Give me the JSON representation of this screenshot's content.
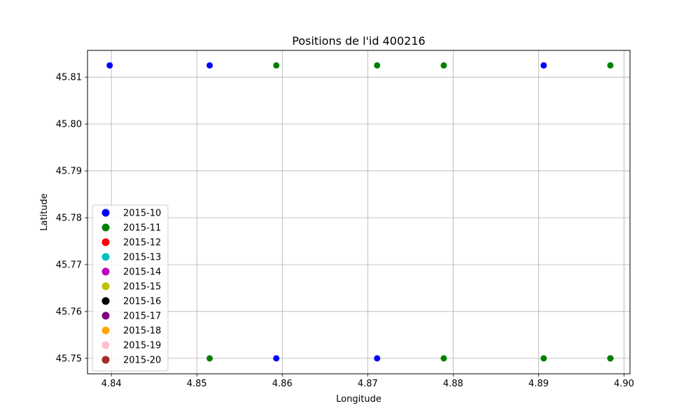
{
  "chart_data": {
    "type": "scatter",
    "title": "Positions de l'id 400216",
    "xlabel": "Longitude",
    "ylabel": "Latitude",
    "xlim": [
      4.8372,
      4.9007
    ],
    "ylim": [
      45.7467,
      45.8157
    ],
    "xticks": [
      4.84,
      4.85,
      4.86,
      4.87,
      4.88,
      4.89,
      4.9
    ],
    "xtick_labels": [
      "4.84",
      "4.85",
      "4.86",
      "4.87",
      "4.88",
      "4.89",
      "4.90"
    ],
    "yticks": [
      45.75,
      45.76,
      45.77,
      45.78,
      45.79,
      45.8,
      45.81
    ],
    "ytick_labels": [
      "45.75",
      "45.76",
      "45.77",
      "45.78",
      "45.79",
      "45.80",
      "45.81"
    ],
    "grid": true,
    "legend_position": "lower-left",
    "series": [
      {
        "name": "2015-10",
        "color": "#0000ff",
        "points": [
          [
            4.8398,
            45.8125
          ],
          [
            4.8515,
            45.8125
          ],
          [
            4.8906,
            45.8125
          ],
          [
            4.8593,
            45.75
          ],
          [
            4.8711,
            45.75
          ],
          [
            4.8984,
            45.75
          ]
        ]
      },
      {
        "name": "2015-11",
        "color": "#008000",
        "points": [
          [
            4.8593,
            45.8125
          ],
          [
            4.8711,
            45.8125
          ],
          [
            4.8789,
            45.8125
          ],
          [
            4.8984,
            45.8125
          ],
          [
            4.8515,
            45.75
          ],
          [
            4.8789,
            45.75
          ],
          [
            4.8906,
            45.75
          ],
          [
            4.8984,
            45.75
          ]
        ]
      },
      {
        "name": "2015-12",
        "color": "#ff0000",
        "points": []
      },
      {
        "name": "2015-13",
        "color": "#00bfbf",
        "points": []
      },
      {
        "name": "2015-14",
        "color": "#bf00bf",
        "points": []
      },
      {
        "name": "2015-15",
        "color": "#bfbf00",
        "points": []
      },
      {
        "name": "2015-16",
        "color": "#000000",
        "points": []
      },
      {
        "name": "2015-17",
        "color": "#800080",
        "points": []
      },
      {
        "name": "2015-18",
        "color": "#ffa500",
        "points": []
      },
      {
        "name": "2015-19",
        "color": "#ffc0cb",
        "points": []
      },
      {
        "name": "2015-20",
        "color": "#a52a2a",
        "points": []
      }
    ]
  }
}
